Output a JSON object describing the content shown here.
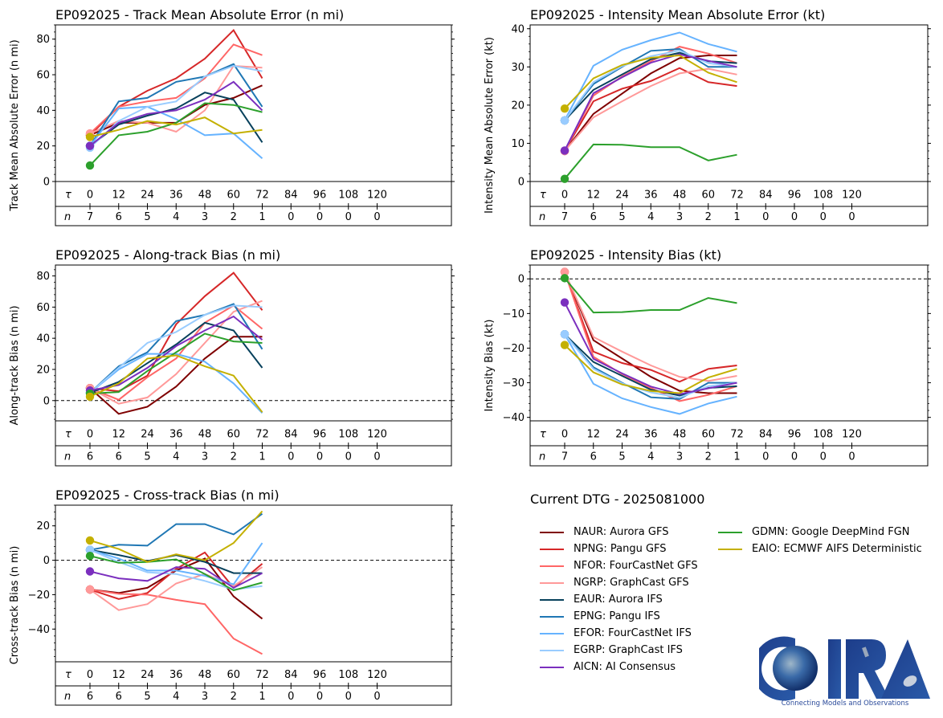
{
  "storm_id": "EP092025",
  "legend": {
    "title": "Current DTG - 2025081000",
    "items": [
      {
        "key": "NAUR",
        "label": "NAUR: Aurora GFS",
        "color": "#7f0000"
      },
      {
        "key": "NPNG",
        "label": "NPNG: Pangu GFS",
        "color": "#d62728"
      },
      {
        "key": "NFOR",
        "label": "NFOR: FourCastNet GFS",
        "color": "#ff6666"
      },
      {
        "key": "NGRP",
        "label": "NGRP: GraphCast GFS",
        "color": "#ff9999"
      },
      {
        "key": "EAUR",
        "label": "EAUR: Aurora IFS",
        "color": "#08415c"
      },
      {
        "key": "EPNG",
        "label": "EPNG: Pangu IFS",
        "color": "#1f77b4"
      },
      {
        "key": "EFOR",
        "label": "EFOR: FourCastNet IFS",
        "color": "#66b3ff"
      },
      {
        "key": "EGRP",
        "label": "EGRP: GraphCast IFS",
        "color": "#99ccff"
      },
      {
        "key": "AICN",
        "label": "AICN: AI Consensus",
        "color": "#7b2fbe"
      },
      {
        "key": "GDMN",
        "label": "GDMN: Google DeepMind FGN",
        "color": "#2ca02c"
      },
      {
        "key": "EAIO",
        "label": "EAIO: ECMWF AIFS Deterministic",
        "color": "#c4b000"
      }
    ]
  },
  "logo": {
    "text": "CIRA",
    "tagline": "Connecting Models and Observations"
  },
  "chart_data": [
    {
      "id": "track",
      "type": "line",
      "title": "EP092025 - Track Mean Absolute Error (n mi)",
      "ylabel": "Track Mean Absolute Error (n mi)",
      "ylim": [
        0,
        88
      ],
      "yticks": [
        0,
        20,
        40,
        60,
        80
      ],
      "zero_line": false,
      "x": [
        0,
        12,
        24,
        36,
        48,
        60,
        72
      ],
      "tau_label": "τ",
      "n_label": "n",
      "tau": [
        "0",
        "12",
        "24",
        "36",
        "48",
        "60",
        "72",
        "84",
        "96",
        "108",
        "120"
      ],
      "n": [
        "7",
        "6",
        "5",
        "4",
        "3",
        "2",
        "1",
        "0",
        "0",
        "0",
        "0"
      ],
      "series": [
        {
          "name": "NAUR",
          "values": [
            26,
            33,
            33,
            33,
            43,
            47,
            54
          ]
        },
        {
          "name": "NPNG",
          "values": [
            26,
            42,
            51,
            58,
            69,
            85,
            58
          ]
        },
        {
          "name": "NFOR",
          "values": [
            27,
            42,
            45,
            47,
            58,
            77,
            71
          ]
        },
        {
          "name": "NGRP",
          "values": [
            27,
            34,
            33,
            28,
            40,
            65,
            64
          ]
        },
        {
          "name": "EAUR",
          "values": [
            20,
            32,
            37,
            41,
            50,
            46,
            22
          ]
        },
        {
          "name": "EPNG",
          "values": [
            20,
            45,
            47,
            56,
            59,
            66,
            42
          ]
        },
        {
          "name": "EFOR",
          "values": [
            20,
            41,
            42,
            35,
            26,
            27,
            13
          ]
        },
        {
          "name": "EGRP",
          "values": [
            19,
            34,
            42,
            45,
            59,
            65,
            62
          ]
        },
        {
          "name": "AICN",
          "values": [
            20,
            33,
            38,
            40,
            46,
            56,
            40
          ]
        },
        {
          "name": "GDMN",
          "values": [
            9,
            26,
            28,
            33,
            44,
            43,
            39
          ]
        },
        {
          "name": "EAIO",
          "values": [
            25,
            29,
            34,
            32,
            36,
            27,
            29
          ]
        }
      ]
    },
    {
      "id": "intensity",
      "type": "line",
      "title": "EP092025 - Intensity Mean Absolute Error (kt)",
      "ylabel": "Intensity Mean Absolute Error (kt)",
      "ylim": [
        0,
        41
      ],
      "yticks": [
        0,
        10,
        20,
        30,
        40
      ],
      "zero_line": false,
      "x": [
        0,
        12,
        24,
        36,
        48,
        60,
        72
      ],
      "tau_label": "τ",
      "n_label": "n",
      "tau": [
        "0",
        "12",
        "24",
        "36",
        "48",
        "60",
        "72",
        "84",
        "96",
        "108",
        "120"
      ],
      "n": [
        "7",
        "6",
        "5",
        "4",
        "3",
        "2",
        "1",
        "0",
        "0",
        "0",
        "0"
      ],
      "series": [
        {
          "name": "NAUR",
          "values": [
            8,
            17.7,
            23,
            28.3,
            32.3,
            33,
            33
          ]
        },
        {
          "name": "NPNG",
          "values": [
            8,
            21,
            24.3,
            26.3,
            29.7,
            26,
            25
          ]
        },
        {
          "name": "NFOR",
          "values": [
            8,
            22.5,
            27.5,
            31.5,
            35.3,
            33.5,
            31
          ]
        },
        {
          "name": "NGRP",
          "values": [
            8,
            16.8,
            21,
            25,
            28.3,
            29.5,
            28
          ]
        },
        {
          "name": "EAUR",
          "values": [
            16,
            24,
            28,
            32,
            33.7,
            31.5,
            31
          ]
        },
        {
          "name": "EPNG",
          "values": [
            16,
            25.5,
            30,
            34.2,
            34.7,
            30,
            30
          ]
        },
        {
          "name": "EFOR",
          "values": [
            16,
            30.3,
            34.5,
            37,
            39,
            36,
            34
          ]
        },
        {
          "name": "EGRP",
          "values": [
            16,
            26,
            30.2,
            32.8,
            34.3,
            31,
            30
          ]
        },
        {
          "name": "AICN",
          "values": [
            8.1,
            23.1,
            27.3,
            31.1,
            33.3,
            31.6,
            30
          ]
        },
        {
          "name": "GDMN",
          "values": [
            0.7,
            9.7,
            9.6,
            9,
            9,
            5.5,
            7
          ]
        },
        {
          "name": "EAIO",
          "values": [
            19.1,
            27,
            30.5,
            32.4,
            33,
            28.5,
            26
          ]
        }
      ]
    },
    {
      "id": "along",
      "type": "line",
      "title": "EP092025 - Along-track Bias (n mi)",
      "ylabel": "Along-track Bias (n mi)",
      "ylim": [
        -13,
        87
      ],
      "yticks": [
        0,
        20,
        40,
        60,
        80
      ],
      "zero_line": true,
      "x": [
        0,
        12,
        24,
        36,
        48,
        60,
        72
      ],
      "tau_label": "τ",
      "n_label": "n",
      "tau": [
        "0",
        "12",
        "24",
        "36",
        "48",
        "60",
        "72",
        "84",
        "96",
        "108",
        "120"
      ],
      "n": [
        "6",
        "6",
        "5",
        "4",
        "3",
        "2",
        "1",
        "0",
        "0",
        "0",
        "0"
      ],
      "series": [
        {
          "name": "NAUR",
          "values": [
            8,
            -8.5,
            -4,
            9,
            27,
            41,
            41
          ]
        },
        {
          "name": "NPNG",
          "values": [
            8,
            6,
            16,
            49,
            67,
            82,
            58
          ]
        },
        {
          "name": "NFOR",
          "values": [
            8,
            0.5,
            15,
            27,
            50,
            61,
            46
          ]
        },
        {
          "name": "NGRP",
          "values": [
            8,
            -2,
            2,
            17,
            37,
            57,
            64
          ]
        },
        {
          "name": "EAUR",
          "values": [
            5,
            12,
            24,
            36,
            50,
            45,
            21
          ]
        },
        {
          "name": "EPNG",
          "values": [
            5,
            22,
            31,
            51,
            55,
            62,
            33
          ]
        },
        {
          "name": "EFOR",
          "values": [
            5,
            20,
            30,
            30,
            25,
            11,
            -8
          ]
        },
        {
          "name": "EGRP",
          "values": [
            5,
            21,
            37,
            44,
            55,
            61,
            60
          ]
        },
        {
          "name": "AICN",
          "values": [
            6.5,
            10,
            21,
            35,
            45,
            54,
            39
          ]
        },
        {
          "name": "GDMN",
          "values": [
            4.5,
            5.5,
            19,
            31,
            43,
            38,
            37
          ]
        },
        {
          "name": "EAIO",
          "values": [
            2.5,
            11,
            27,
            29,
            22,
            16,
            -7.5
          ]
        }
      ]
    },
    {
      "id": "intbias",
      "type": "line",
      "title": "EP092025 - Intensity Bias (kt)",
      "ylabel": "Intensity Bias (kt)",
      "ylim": [
        -41,
        4
      ],
      "yticks": [
        -40,
        -30,
        -20,
        -10,
        0
      ],
      "zero_line": true,
      "x": [
        0,
        12,
        24,
        36,
        48,
        60,
        72
      ],
      "tau_label": "τ",
      "n_label": "n",
      "tau": [
        "0",
        "12",
        "24",
        "36",
        "48",
        "60",
        "72",
        "84",
        "96",
        "108",
        "120"
      ],
      "n": [
        "7",
        "6",
        "5",
        "4",
        "3",
        "2",
        "1",
        "0",
        "0",
        "0",
        "0"
      ],
      "series": [
        {
          "name": "NAUR",
          "values": [
            2,
            -17.7,
            -23,
            -28.3,
            -32.3,
            -33,
            -33
          ]
        },
        {
          "name": "NPNG",
          "values": [
            2,
            -21,
            -24.3,
            -26.3,
            -29.7,
            -26,
            -25
          ]
        },
        {
          "name": "NFOR",
          "values": [
            2,
            -22.5,
            -27.5,
            -31.5,
            -35.3,
            -33.5,
            -31
          ]
        },
        {
          "name": "NGRP",
          "values": [
            2,
            -16.8,
            -21,
            -25,
            -28.3,
            -29.5,
            -28
          ]
        },
        {
          "name": "EAUR",
          "values": [
            -16,
            -24,
            -28,
            -32,
            -33.7,
            -31.5,
            -31
          ]
        },
        {
          "name": "EPNG",
          "values": [
            -16,
            -25.5,
            -30,
            -34.2,
            -34.7,
            -30,
            -30
          ]
        },
        {
          "name": "EFOR",
          "values": [
            -16,
            -30.3,
            -34.5,
            -37,
            -39,
            -36,
            -34
          ]
        },
        {
          "name": "EGRP",
          "values": [
            -16,
            -26,
            -30.2,
            -32.8,
            -34.3,
            -31,
            -30
          ]
        },
        {
          "name": "AICN",
          "values": [
            -6.8,
            -23.1,
            -27.3,
            -31.1,
            -33.3,
            -31.6,
            -30
          ]
        },
        {
          "name": "GDMN",
          "values": [
            0.2,
            -9.7,
            -9.6,
            -9,
            -9,
            -5.5,
            -7
          ]
        },
        {
          "name": "EAIO",
          "values": [
            -19.1,
            -27,
            -30.5,
            -32.4,
            -33,
            -28.5,
            -26
          ]
        }
      ]
    },
    {
      "id": "cross",
      "type": "line",
      "title": "EP092025 - Cross-track Bias (n mi)",
      "ylabel": "Cross-track Bias (n mi)",
      "ylim": [
        -59,
        32
      ],
      "yticks": [
        -40,
        -20,
        0,
        20
      ],
      "zero_line": true,
      "x": [
        0,
        12,
        24,
        36,
        48,
        60,
        72
      ],
      "tau_label": "τ",
      "n_label": "n",
      "tau": [
        "0",
        "12",
        "24",
        "36",
        "48",
        "60",
        "72",
        "84",
        "96",
        "108",
        "120"
      ],
      "n": [
        "6",
        "6",
        "5",
        "4",
        "3",
        "2",
        "1",
        "0",
        "0",
        "0",
        "0"
      ],
      "series": [
        {
          "name": "NAUR",
          "values": [
            -17,
            -19,
            -16,
            -6,
            1,
            -21,
            -34
          ]
        },
        {
          "name": "NPNG",
          "values": [
            -17,
            -22.5,
            -19,
            -5,
            4.5,
            -16,
            -2
          ]
        },
        {
          "name": "NFOR",
          "values": [
            -17,
            -19.5,
            -20,
            -23,
            -25.5,
            -45.5,
            -54.5
          ]
        },
        {
          "name": "NGRP",
          "values": [
            -17,
            -29,
            -25.5,
            -13.5,
            -8,
            -15,
            -4
          ]
        },
        {
          "name": "EAUR",
          "values": [
            6,
            3,
            -0.5,
            3,
            -1,
            -7.5,
            -7.5
          ]
        },
        {
          "name": "EPNG",
          "values": [
            6,
            9,
            8.5,
            21,
            21,
            15,
            27
          ]
        },
        {
          "name": "EFOR",
          "values": [
            6,
            1,
            -6,
            -6,
            -9,
            -14,
            10
          ]
        },
        {
          "name": "EGRP",
          "values": [
            6,
            -1,
            -7,
            -8,
            -12,
            -17,
            -15
          ]
        },
        {
          "name": "AICN",
          "values": [
            -6.5,
            -10.5,
            -12,
            -4,
            -5,
            -16,
            -7.5
          ]
        },
        {
          "name": "GDMN",
          "values": [
            2.5,
            -1.5,
            -1,
            0.5,
            -8,
            -17.5,
            -13
          ]
        },
        {
          "name": "EAIO",
          "values": [
            11.5,
            6.5,
            -1,
            3.5,
            0,
            10,
            28.5
          ]
        }
      ]
    }
  ]
}
